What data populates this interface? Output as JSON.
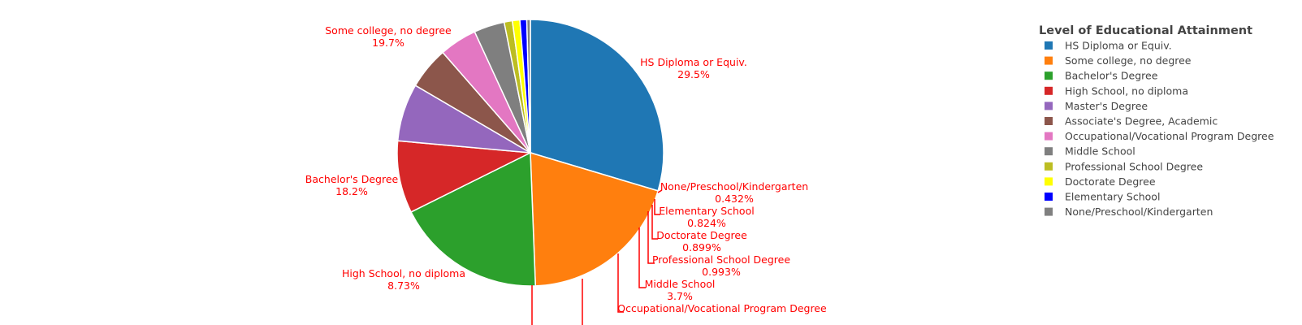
{
  "chart_data": {
    "type": "pie",
    "legend": {
      "title": "Level of Educational Attainment",
      "placement": "top-right"
    },
    "label_color": "#ff0000",
    "slices": [
      {
        "label": "HS Diploma or Equiv.",
        "value": 29.5,
        "value_text": "29.5%",
        "color": "#1f77b4"
      },
      {
        "label": "Some college, no degree",
        "value": 19.7,
        "value_text": "19.7%",
        "color": "#ff7f0e"
      },
      {
        "label": "Bachelor's Degree",
        "value": 18.2,
        "value_text": "18.2%",
        "color": "#2ca02c"
      },
      {
        "label": "High School, no diploma",
        "value": 8.73,
        "value_text": "8.73%",
        "color": "#d62728"
      },
      {
        "label": "Master's Degree",
        "value": 6.97,
        "value_text": "",
        "color": "#9467bd"
      },
      {
        "label": "Associate's Degree, Academic",
        "value": 5.12,
        "value_text": "",
        "color": "#8c564b"
      },
      {
        "label": "Occupational/Vocational Program Degree",
        "value": 4.54,
        "value_text": "",
        "color": "#e377c2"
      },
      {
        "label": "Middle School",
        "value": 3.7,
        "value_text": "3.7%",
        "color": "#7f7f7f"
      },
      {
        "label": "Professional School Degree",
        "value": 0.993,
        "value_text": "0.993%",
        "color": "#bcbd22"
      },
      {
        "label": "Doctorate Degree",
        "value": 0.899,
        "value_text": "0.899%",
        "color": "#ffff00"
      },
      {
        "label": "Elementary School",
        "value": 0.824,
        "value_text": "0.824%",
        "color": "#0000ff"
      },
      {
        "label": "None/Preschool/Kindergarten",
        "value": 0.432,
        "value_text": "0.432%",
        "color": "#808080"
      }
    ]
  }
}
